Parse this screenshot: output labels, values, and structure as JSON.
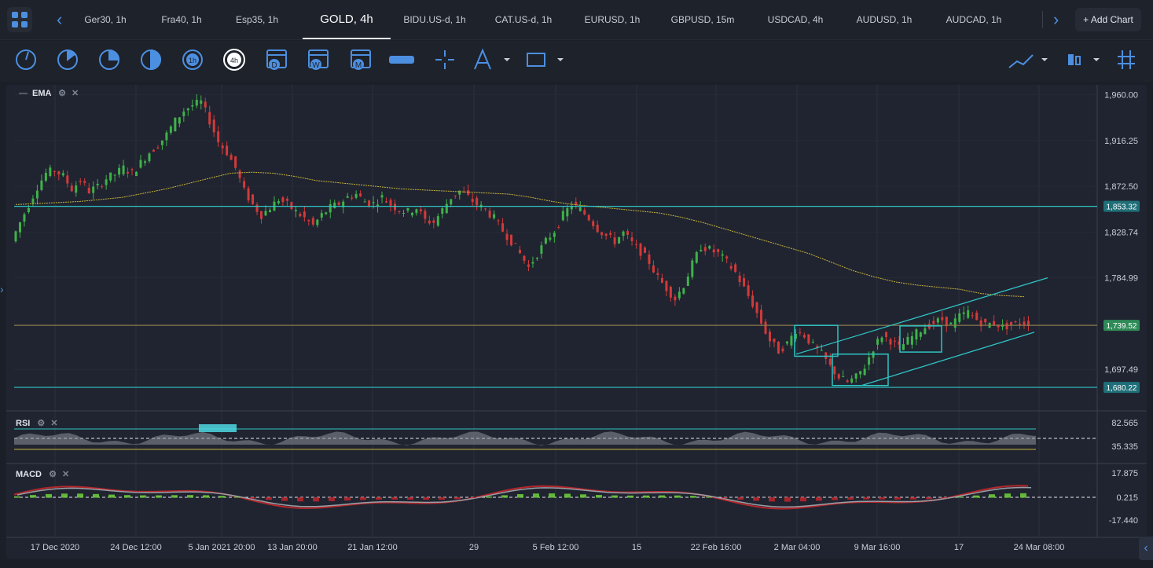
{
  "topbar": {
    "tabs": [
      {
        "label": "Ger30, 1h"
      },
      {
        "label": "Fra40, 1h"
      },
      {
        "label": "Esp35, 1h"
      },
      {
        "label": "GOLD, 4h"
      },
      {
        "label": "BIDU.US-d, 1h"
      },
      {
        "label": "CAT.US-d, 1h"
      },
      {
        "label": "EURUSD, 1h"
      },
      {
        "label": "GBPUSD, 15m"
      },
      {
        "label": "USDCAD, 4h"
      },
      {
        "label": "AUDUSD, 1h"
      },
      {
        "label": "AUDCAD, 1h"
      }
    ],
    "active_tab": "GOLD, 4h",
    "add_chart_label": "+ Add Chart"
  },
  "toolbar": {
    "timeframe_icons": [
      "1m",
      "5m",
      "15m",
      "30m",
      "1h",
      "4h",
      "D",
      "W",
      "M"
    ],
    "tool_icons": [
      "ruler-icon",
      "crosshair-icon",
      "drawing-tools-icon",
      "rectangle-icon",
      "indicators-icon",
      "chart-type-icon",
      "grid-icon"
    ]
  },
  "accent": "#4c8fe0",
  "chart_data": [
    {
      "type": "candlestick",
      "title": "",
      "indicator_label": "EMA",
      "ylim": [
        1660,
        1968
      ],
      "y_ticks": [
        "1,960.00",
        "1,916.25",
        "1,872.50",
        "1,828.74",
        "1,784.99",
        "1,697.49"
      ],
      "x_ticks": [
        "17 Dec 2020",
        "24 Dec 12:00",
        "5 Jan 2021 20:00",
        "13 Jan 20:00",
        "21 Jan 12:00",
        "29",
        "5 Feb 12:00",
        "15",
        "22 Feb 16:00",
        "2 Mar 04:00",
        "9 Mar 16:00",
        "17",
        "24 Mar 08:00"
      ],
      "horizontal_levels": [
        {
          "value": 1853.32,
          "label": "1,853.32",
          "color": "#2ec4c4"
        },
        {
          "value": 1739.52,
          "label": "1,739.52",
          "color": "#8a7a4c",
          "badge_color": "#2e8b57"
        },
        {
          "value": 1680.22,
          "label": "1,680.22",
          "color": "#2ec4c4"
        }
      ],
      "close_path": [
        1820,
        1838,
        1855,
        1872,
        1885,
        1888,
        1882,
        1870,
        1878,
        1868,
        1872,
        1880,
        1884,
        1890,
        1885,
        1895,
        1905,
        1912,
        1922,
        1935,
        1945,
        1950,
        1953,
        1935,
        1915,
        1905,
        1890,
        1868,
        1855,
        1845,
        1852,
        1860,
        1855,
        1848,
        1842,
        1835,
        1845,
        1852,
        1856,
        1862,
        1865,
        1858,
        1856,
        1862,
        1855,
        1850,
        1848,
        1852,
        1840,
        1838,
        1850,
        1862,
        1868,
        1862,
        1855,
        1850,
        1842,
        1830,
        1820,
        1808,
        1795,
        1808,
        1820,
        1830,
        1845,
        1855,
        1850,
        1842,
        1832,
        1825,
        1820,
        1828,
        1818,
        1810,
        1800,
        1785,
        1775,
        1765,
        1778,
        1798,
        1815,
        1812,
        1808,
        1800,
        1790,
        1775,
        1760,
        1742,
        1725,
        1715,
        1722,
        1735,
        1730,
        1720,
        1712,
        1700,
        1690,
        1685,
        1690,
        1700,
        1718,
        1730,
        1725,
        1718,
        1725,
        1732,
        1738,
        1742,
        1745,
        1740,
        1748,
        1752,
        1745,
        1740,
        1742,
        1738,
        1740,
        1742
      ],
      "ema_path": [
        1855,
        1856,
        1857,
        1858,
        1860,
        1862,
        1866,
        1870,
        1875,
        1880,
        1885,
        1886,
        1885,
        1882,
        1878,
        1876,
        1874,
        1872,
        1870,
        1869,
        1868,
        1867,
        1866,
        1865,
        1862,
        1858,
        1855,
        1853,
        1851,
        1849,
        1847,
        1843,
        1838,
        1832,
        1826,
        1820,
        1814,
        1808,
        1800,
        1792,
        1786,
        1781,
        1778,
        1776,
        1774,
        1770,
        1768,
        1767
      ],
      "rsi": {
        "label": "RSI",
        "levels": [
          "82.565",
          "35.335"
        ]
      },
      "macd": {
        "label": "MACD",
        "levels": [
          "17.875",
          "0.215",
          "-17.440"
        ]
      }
    }
  ]
}
